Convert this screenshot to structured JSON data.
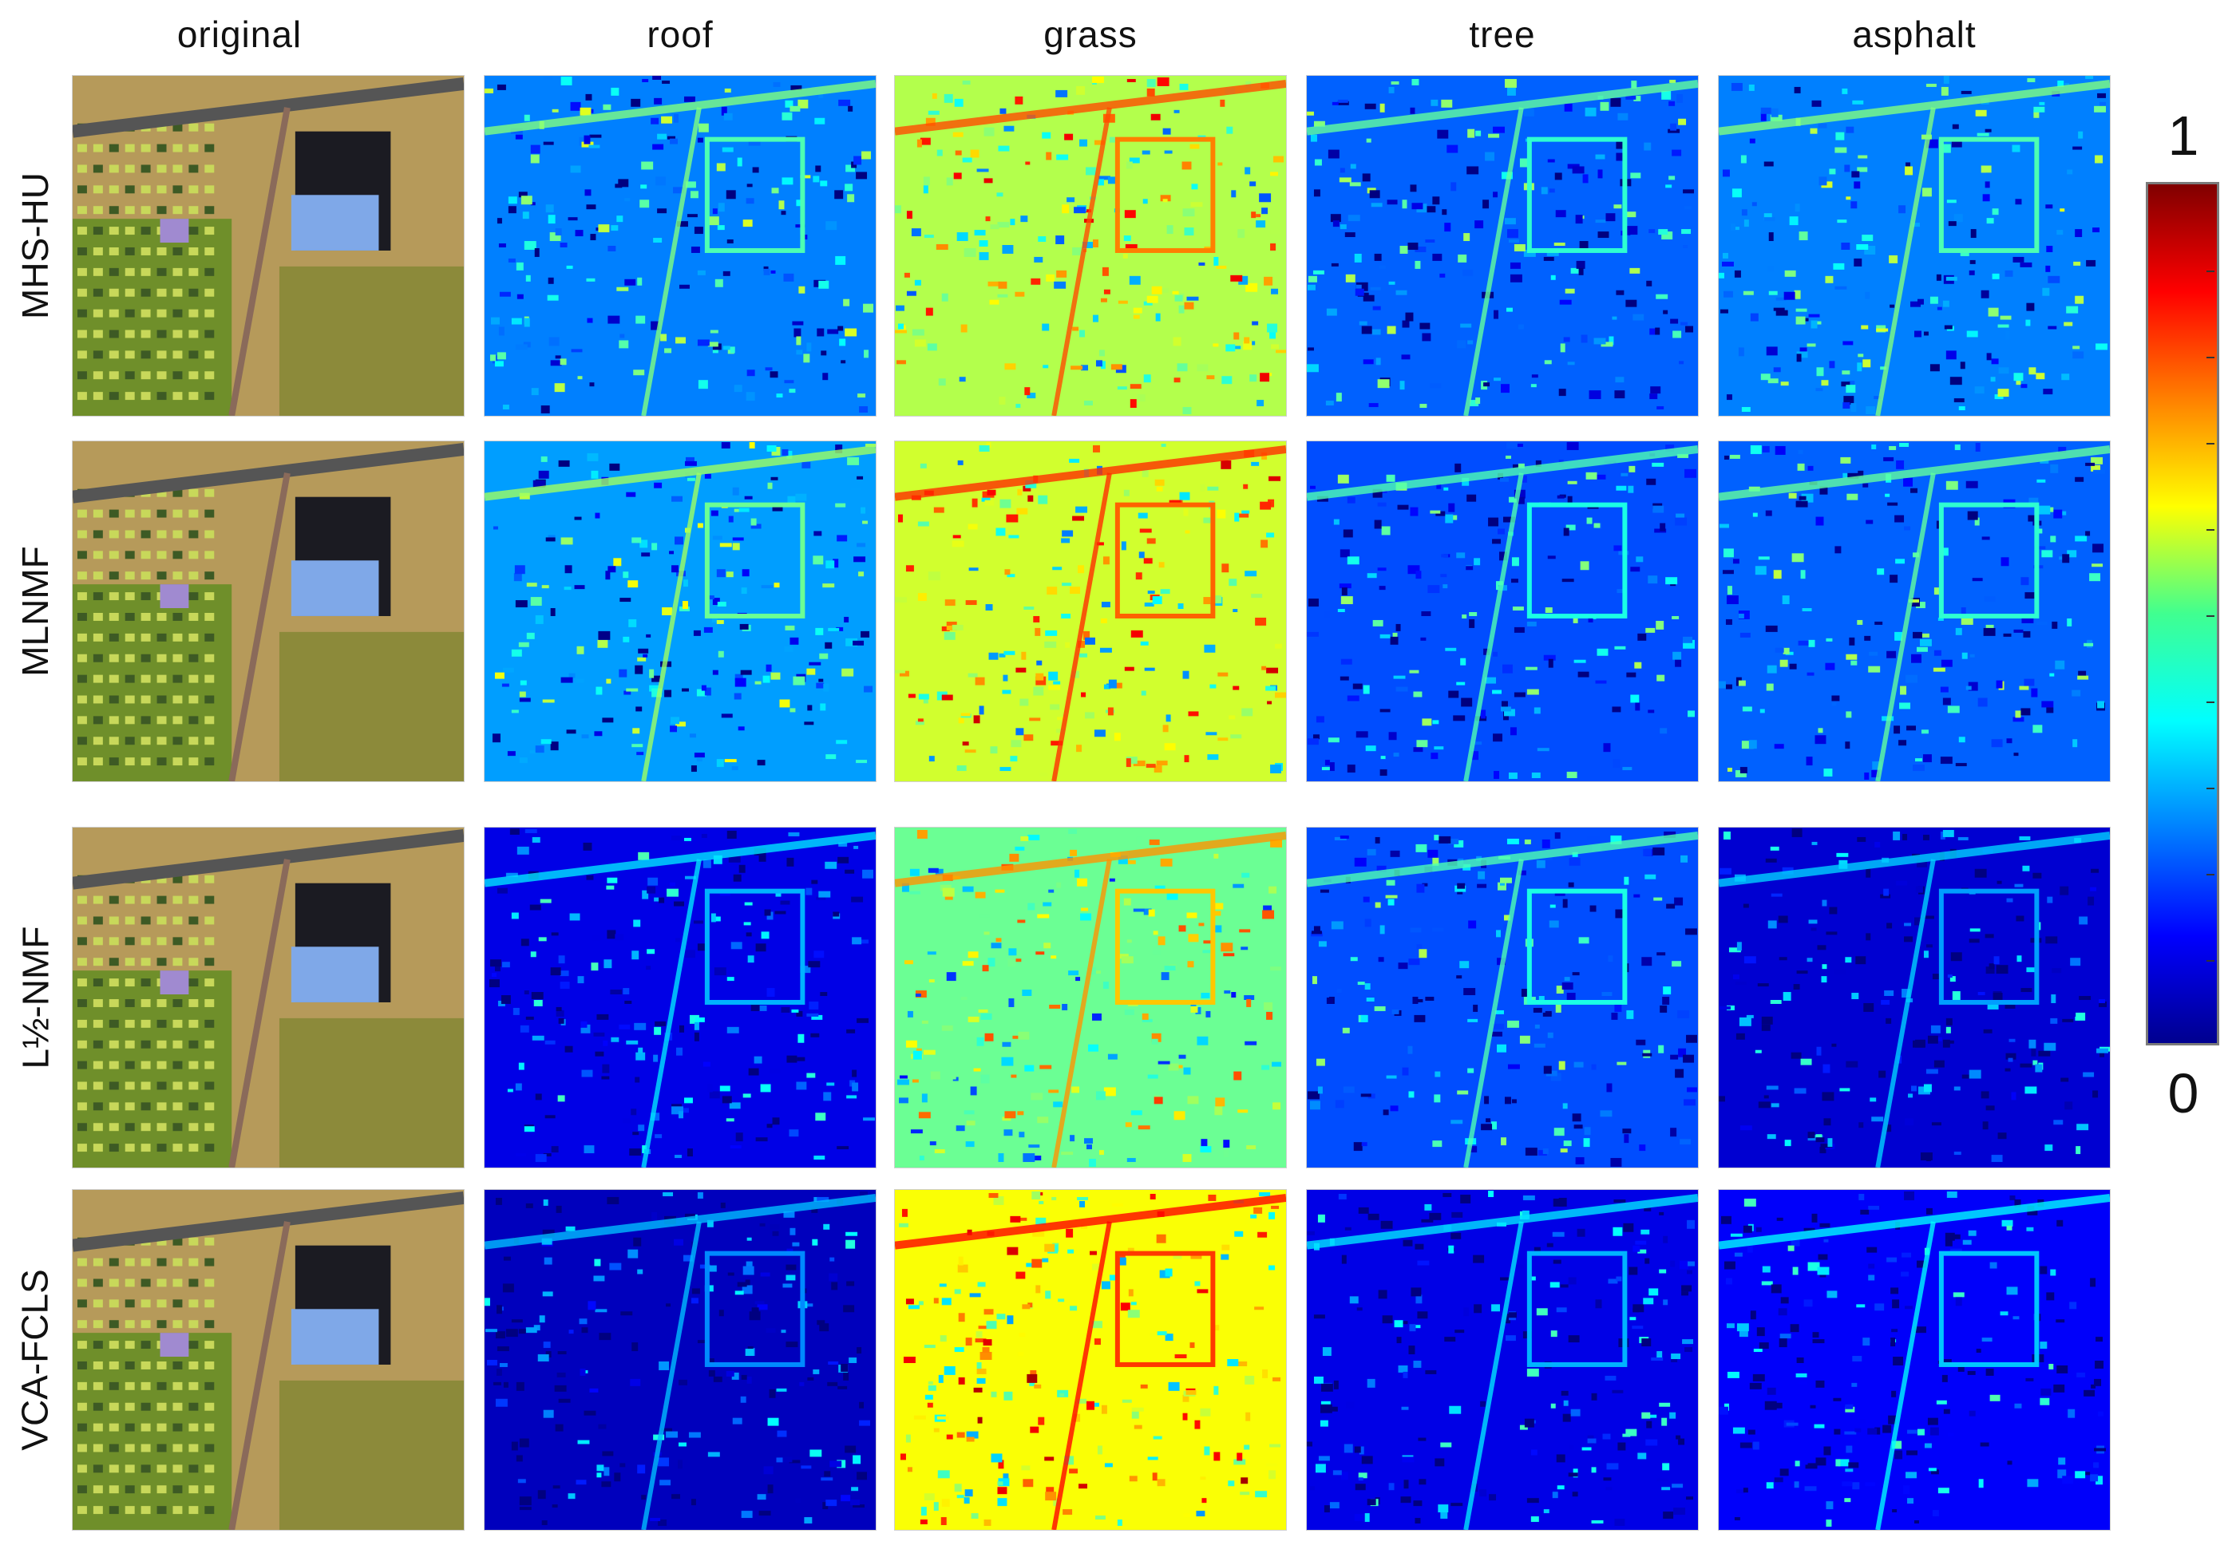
{
  "columns": [
    "original",
    "roof",
    "grass",
    "tree",
    "asphalt"
  ],
  "rows": [
    "MHS-HU",
    "MLNMF",
    "L½-NMF",
    "VCA-FCLS"
  ],
  "colorbar": {
    "max_label": "1",
    "min_label": "0",
    "colormap": "jet"
  },
  "colors": {
    "low": "#0000c8",
    "mid": "#00ffff",
    "high": "#ff0000",
    "terrain_light": "#b69a5a",
    "terrain_dark": "#6b7a2a",
    "building": "#7fa8e8"
  },
  "abundance_levels": {
    "MHS-HU": {
      "roof": 0.25,
      "grass": 0.55,
      "tree": 0.22,
      "asphalt": 0.25
    },
    "MLNMF": {
      "roof": 0.28,
      "grass": 0.58,
      "tree": 0.2,
      "asphalt": 0.22
    },
    "L½-NMF": {
      "roof": 0.1,
      "grass": 0.48,
      "tree": 0.2,
      "asphalt": 0.08
    },
    "VCA-FCLS": {
      "roof": 0.06,
      "grass": 0.62,
      "tree": 0.1,
      "asphalt": 0.12
    }
  }
}
